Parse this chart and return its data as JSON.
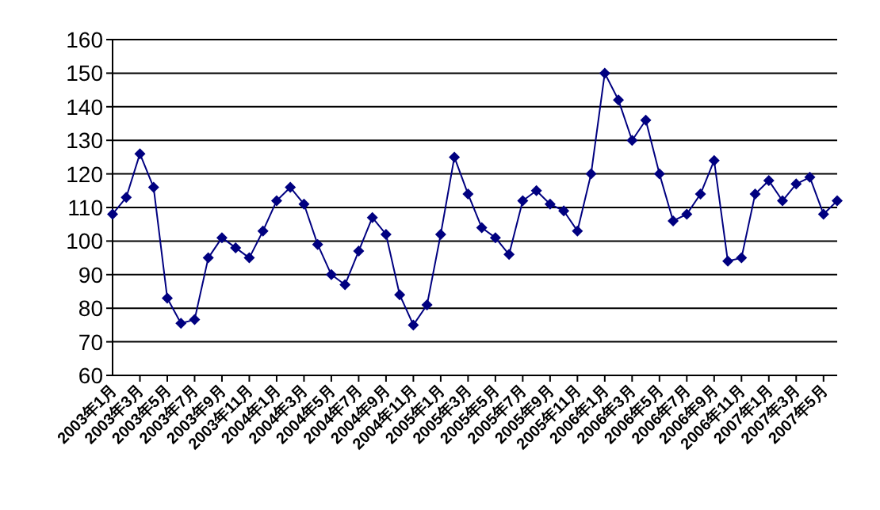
{
  "chart_data": {
    "type": "line",
    "categories": [
      "2003年1月",
      null,
      "2003年3月",
      null,
      "2003年5月",
      null,
      "2003年7月",
      null,
      "2003年9月",
      null,
      "2003年11月",
      null,
      "2004年1月",
      null,
      "2004年3月",
      null,
      "2004年5月",
      null,
      "2004年7月",
      null,
      "2004年9月",
      null,
      "2004年11月",
      null,
      "2005年1月",
      null,
      "2005年3月",
      null,
      "2005年5月",
      null,
      "2005年7月",
      null,
      "2005年9月",
      null,
      "2005年11月",
      null,
      "2006年1月",
      null,
      "2006年3月",
      null,
      "2006年5月",
      null,
      "2006年7月",
      null,
      "2006年9月",
      null,
      "2006年11月",
      null,
      "2007年1月",
      null,
      "2007年3月",
      null,
      "2007年5月",
      null
    ],
    "series": [
      {
        "color": "#000080",
        "values": [
          108,
          113,
          126,
          116,
          83,
          75.5,
          76.6,
          95,
          101,
          98,
          95,
          103,
          112,
          116,
          111,
          99,
          90,
          87,
          97,
          107,
          102,
          84,
          75,
          81,
          102,
          125,
          114,
          104,
          101,
          96,
          112,
          115,
          111,
          109,
          103,
          120,
          150,
          142,
          130,
          136,
          120,
          106,
          108,
          114,
          124,
          94,
          95,
          114,
          118,
          112,
          117,
          119,
          108,
          112
        ]
      }
    ],
    "ylim": [
      60,
      160
    ],
    "yticks": [
      60,
      70,
      80,
      90,
      100,
      110,
      120,
      130,
      140,
      150,
      160
    ],
    "grid": "y",
    "marker": "diamond",
    "line_style": "solid"
  }
}
